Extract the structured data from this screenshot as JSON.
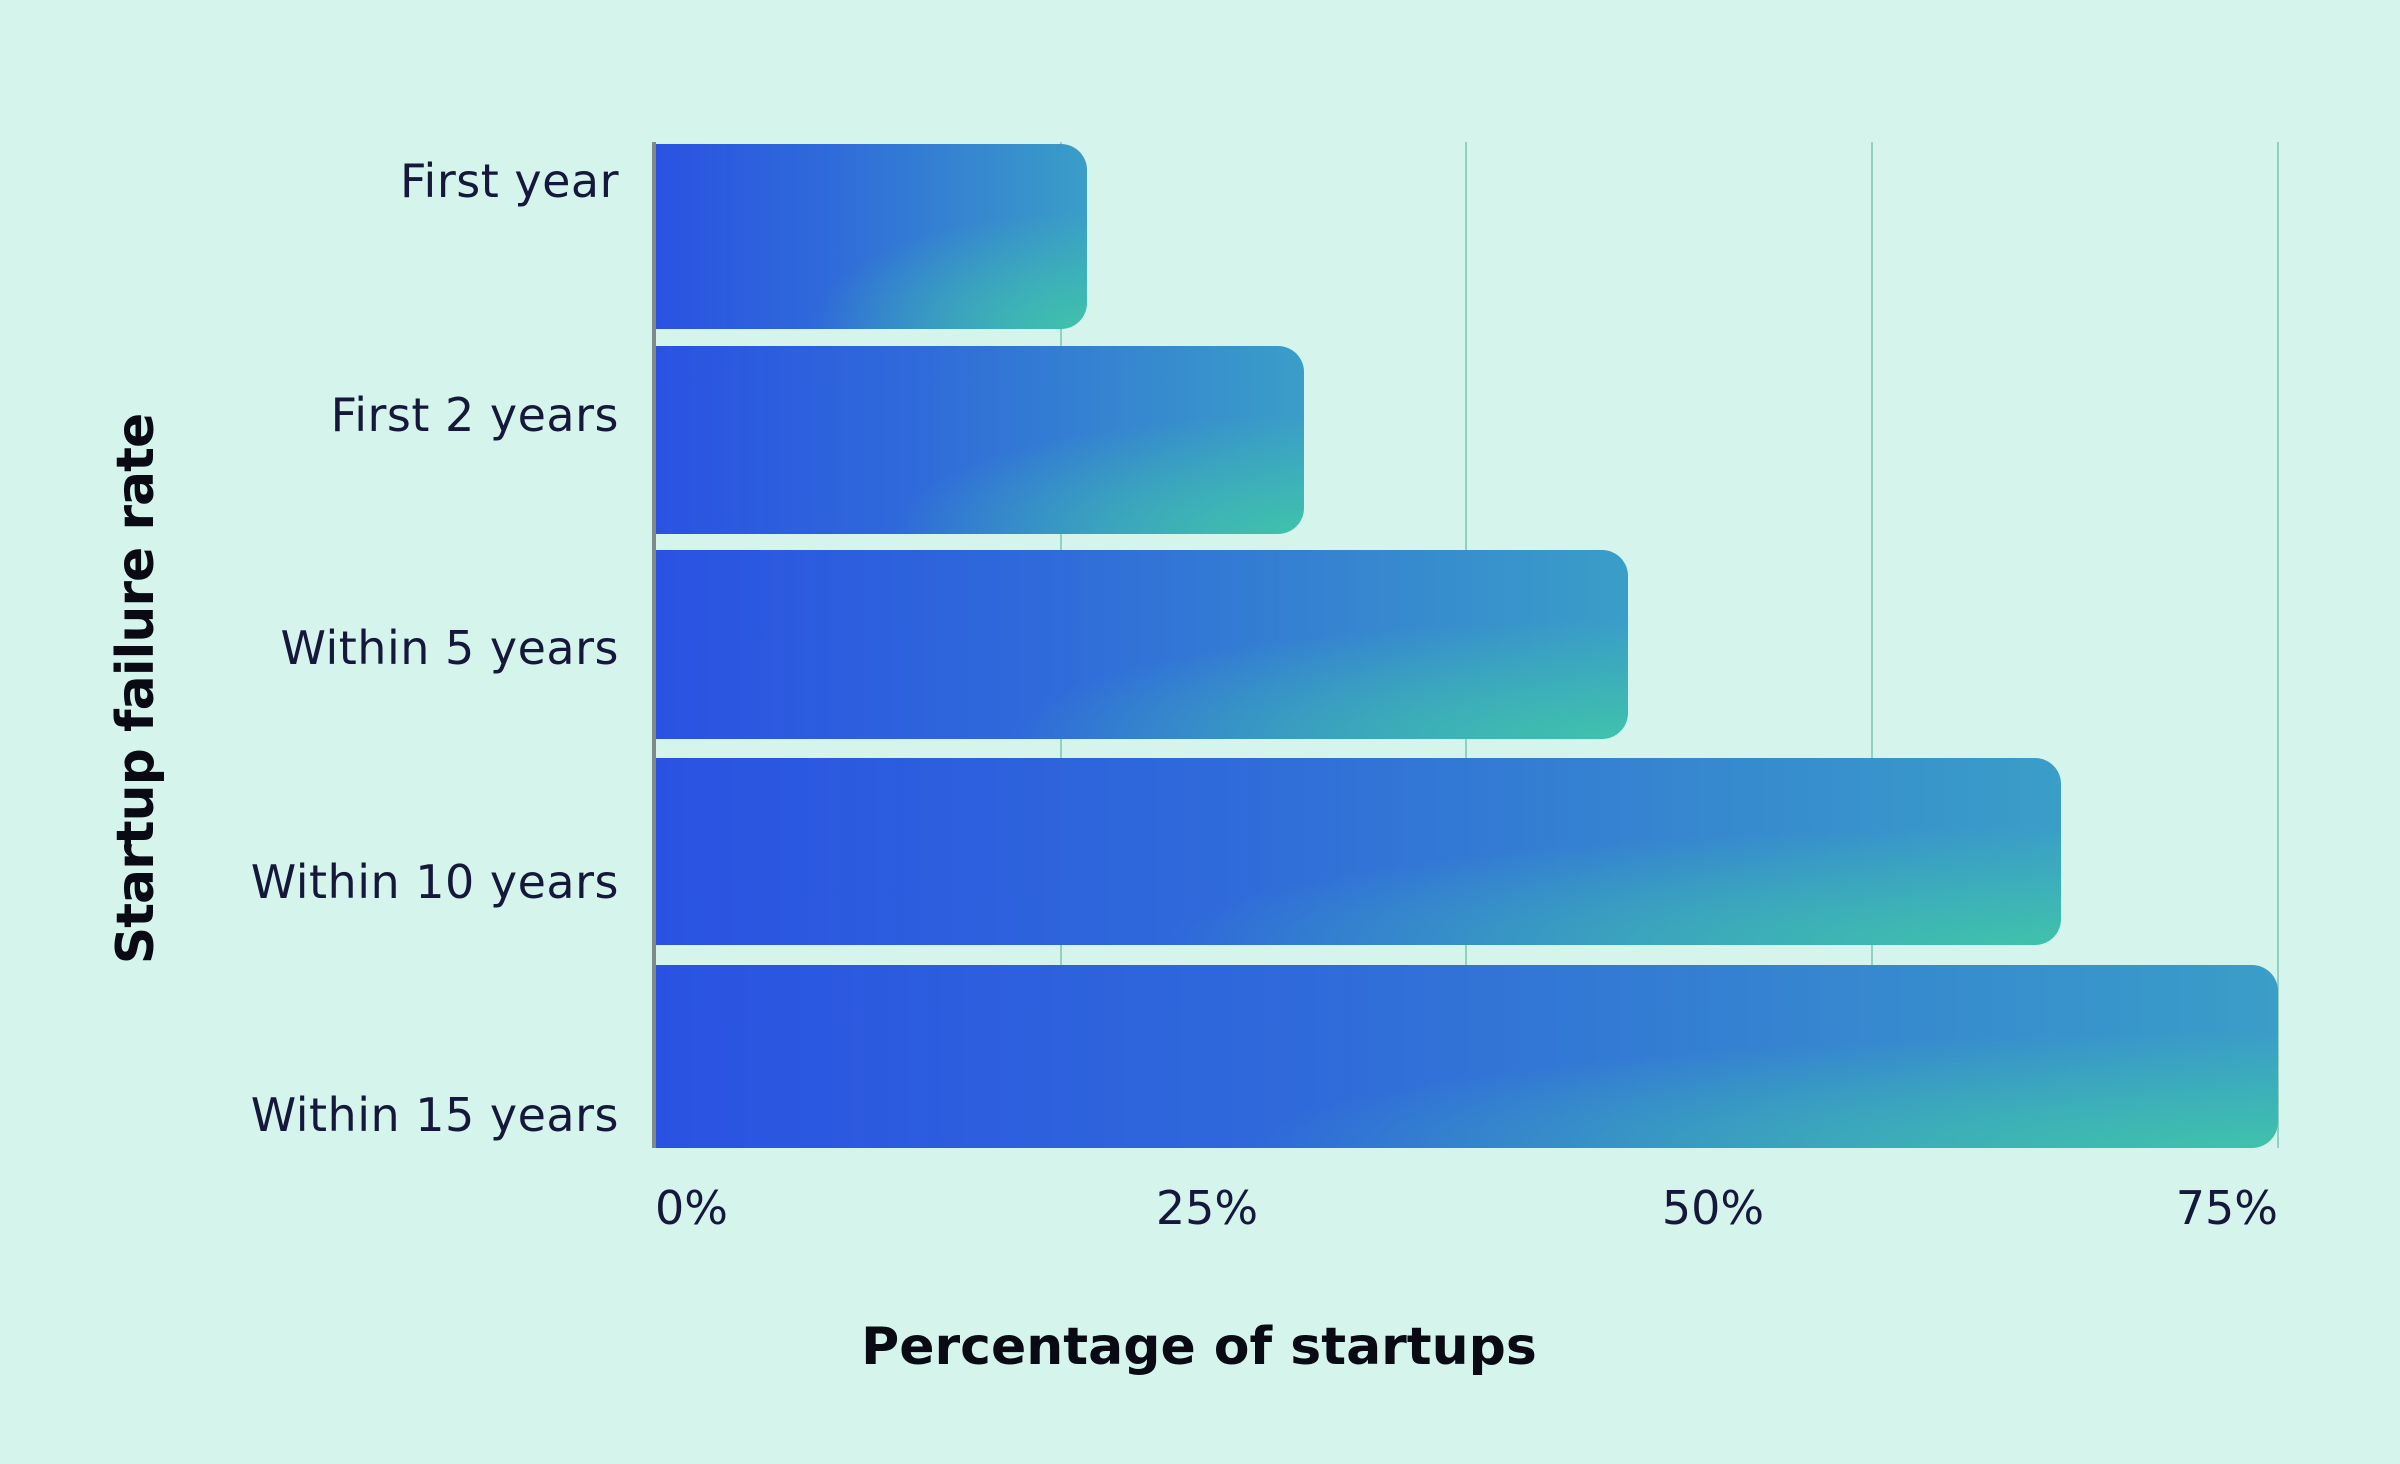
{
  "chart_data": {
    "type": "bar",
    "orientation": "horizontal",
    "categories": [
      "First year",
      "First 2 years",
      "Within 5 years",
      "Within 10 years",
      "Within 15 years"
    ],
    "values": [
      20,
      30,
      45,
      65,
      75
    ],
    "unit": "%",
    "xlabel": "Percentage of startups",
    "ylabel": "Startup failure rate",
    "xticks": [
      "0%",
      "25%",
      "50%",
      "75%"
    ],
    "xlim": [
      0,
      75
    ],
    "grid": true,
    "legend": null
  },
  "colors": {
    "background": "#d5f5ec",
    "bar_start": "#2a52e2",
    "bar_end": "#3fc4aa",
    "gridline": "#93d0bf",
    "text": "#15183a"
  }
}
